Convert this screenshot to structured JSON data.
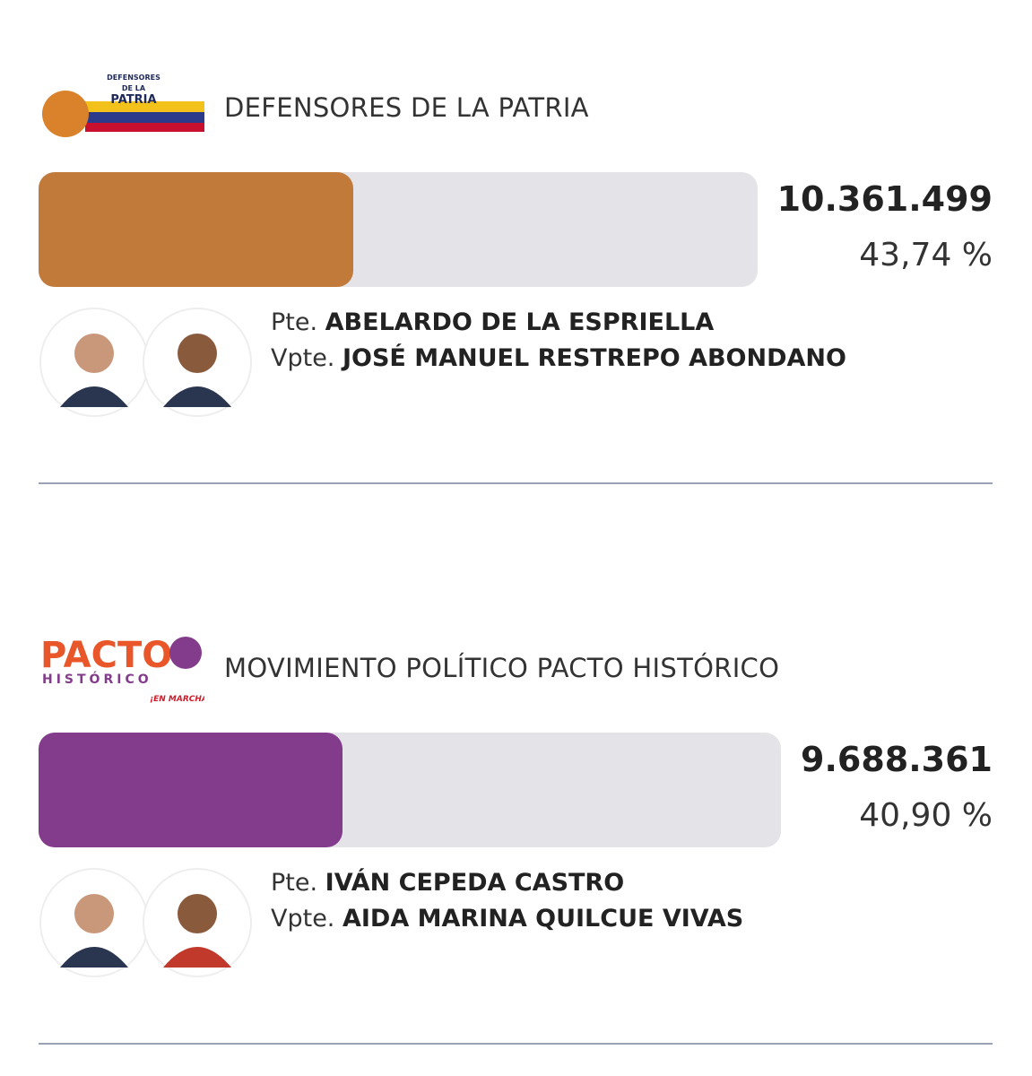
{
  "candidates": [
    {
      "party": "DEFENSORES DE LA PATRIA",
      "logo_text": [
        "DEFENSORES",
        "DE LA",
        "PATRIA"
      ],
      "color": "#c17a3a",
      "votes": "10.361.499",
      "percent": {
        "value": 43.74,
        "label": "43,74 %"
      },
      "president_prefix": "Pte.",
      "president": "ABELARDO DE LA ESPRIELLA",
      "vice_prefix": "Vpte.",
      "vice": "JOSÉ MANUEL RESTREPO ABONDANO"
    },
    {
      "party": "MOVIMIENTO POLÍTICO PACTO HISTÓRICO",
      "logo_text": [
        "PACTO",
        "HISTÓRICO",
        "¡EN MARCHA!"
      ],
      "color": "#833c8c",
      "votes": "9.688.361",
      "percent": {
        "value": 40.9,
        "label": "40,90 %"
      },
      "president_prefix": "Pte.",
      "president": "IVÁN CEPEDA CASTRO",
      "vice_prefix": "Vpte.",
      "vice": "AIDA MARINA QUILCUE VIVAS"
    }
  ]
}
